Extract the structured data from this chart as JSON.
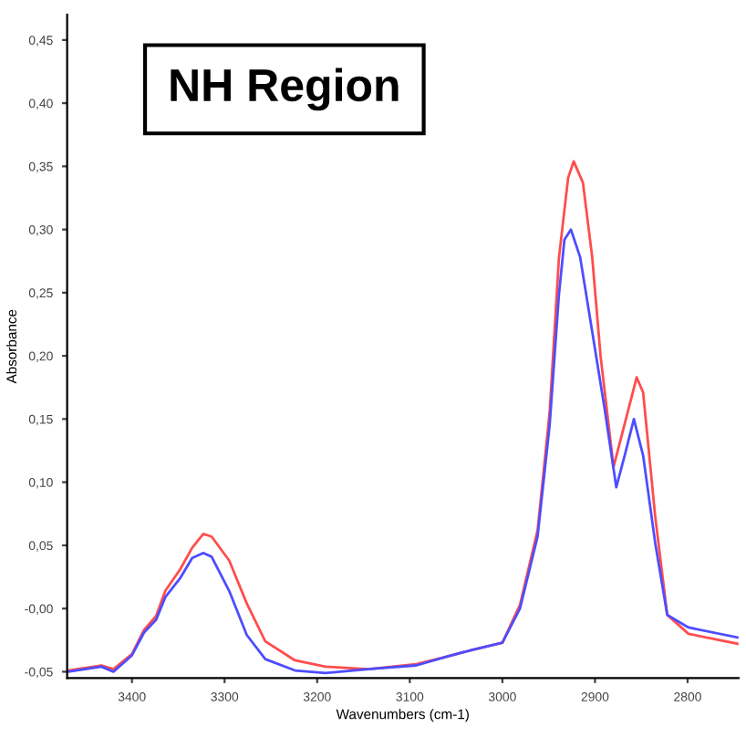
{
  "chart_data": {
    "type": "line",
    "xlabel": "Wavenumbers (cm-1)",
    "ylabel": "Absorbance",
    "annotations": [
      "NH Region"
    ],
    "xlim": [
      3470,
      2745
    ],
    "xticks": [
      3400,
      3300,
      3200,
      3100,
      3000,
      2900,
      2800
    ],
    "ylim": [
      -0.055,
      0.47
    ],
    "yticks": [
      {
        "value": -0.05,
        "label": "-0,05"
      },
      {
        "value": 0,
        "label": "-0,00"
      },
      {
        "value": 0.05,
        "label": "0,05"
      },
      {
        "value": 0.1,
        "label": "0,10"
      },
      {
        "value": 0.15,
        "label": "0,15"
      },
      {
        "value": 0.2,
        "label": "0,20"
      },
      {
        "value": 0.25,
        "label": "0,25"
      },
      {
        "value": 0.3,
        "label": "0,30"
      },
      {
        "value": 0.35,
        "label": "0,35"
      },
      {
        "value": 0.4,
        "label": "0,40"
      },
      {
        "value": 0.45,
        "label": "0,45"
      }
    ],
    "grid": false,
    "legend": false,
    "line_style": "solid",
    "series": [
      {
        "color": "#ff4d4d",
        "x": [
          3469,
          3433,
          3420,
          3400,
          3387,
          3374,
          3364,
          3348,
          3335,
          3323,
          3314,
          3295,
          3276,
          3256,
          3224,
          3191,
          3145,
          3093,
          3060,
          3034,
          3000,
          2981,
          2962,
          2949,
          2939,
          2929,
          2923,
          2913,
          2903,
          2894,
          2880,
          2868,
          2855,
          2848,
          2835,
          2822,
          2799,
          2745
        ],
        "values": [
          -0.049,
          -0.045,
          -0.048,
          -0.036,
          -0.017,
          -0.006,
          0.014,
          0.031,
          0.048,
          0.059,
          0.057,
          0.038,
          0.004,
          -0.026,
          -0.041,
          -0.046,
          -0.048,
          -0.044,
          -0.038,
          -0.033,
          -0.027,
          0.003,
          0.062,
          0.155,
          0.277,
          0.341,
          0.354,
          0.337,
          0.278,
          0.2,
          0.112,
          0.146,
          0.183,
          0.171,
          0.073,
          -0.005,
          -0.02,
          -0.028
        ]
      },
      {
        "color": "#4d4dff",
        "x": [
          3469,
          3433,
          3420,
          3400,
          3387,
          3374,
          3364,
          3348,
          3335,
          3323,
          3314,
          3295,
          3276,
          3256,
          3224,
          3191,
          3145,
          3093,
          3060,
          3034,
          3000,
          2981,
          2962,
          2949,
          2939,
          2933,
          2926,
          2916,
          2903,
          2890,
          2877,
          2868,
          2858,
          2848,
          2835,
          2822,
          2799,
          2745
        ],
        "values": [
          -0.05,
          -0.046,
          -0.05,
          -0.037,
          -0.019,
          -0.009,
          0.009,
          0.024,
          0.04,
          0.044,
          0.041,
          0.014,
          -0.021,
          -0.04,
          -0.049,
          -0.051,
          -0.048,
          -0.045,
          -0.038,
          -0.033,
          -0.027,
          0.0,
          0.057,
          0.145,
          0.248,
          0.292,
          0.3,
          0.278,
          0.219,
          0.16,
          0.096,
          0.121,
          0.15,
          0.121,
          0.052,
          -0.005,
          -0.015,
          -0.023
        ]
      }
    ]
  }
}
